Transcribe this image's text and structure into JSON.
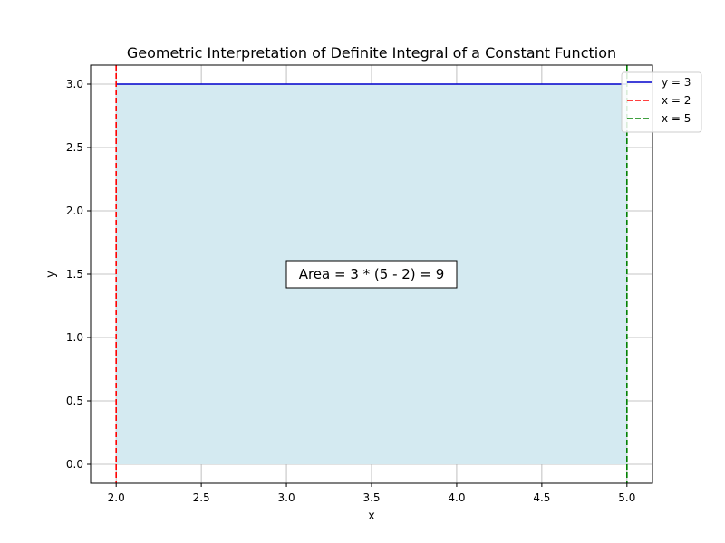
{
  "chart_data": {
    "type": "area",
    "title": "Geometric Interpretation of Definite Integral of a Constant Function",
    "xlabel": "x",
    "ylabel": "y",
    "xlim": [
      1.85,
      5.15
    ],
    "ylim": [
      -0.15,
      3.15
    ],
    "xticks": [
      2.0,
      2.5,
      3.0,
      3.5,
      4.0,
      4.5,
      5.0
    ],
    "xtick_labels": [
      "2.0",
      "2.5",
      "3.0",
      "3.5",
      "4.0",
      "4.5",
      "5.0"
    ],
    "yticks": [
      0.0,
      0.5,
      1.0,
      1.5,
      2.0,
      2.5,
      3.0
    ],
    "ytick_labels": [
      "0.0",
      "0.5",
      "1.0",
      "1.5",
      "2.0",
      "2.5",
      "3.0"
    ],
    "grid": true,
    "legend_position": "upper-right (outside axes edge)",
    "fill": {
      "x": [
        2,
        5
      ],
      "y": 3,
      "color": "#d4eaf1"
    },
    "series": [
      {
        "name": "y = 3",
        "kind": "line",
        "x": [
          2,
          5
        ],
        "y": [
          3,
          3
        ],
        "color": "#0000cc",
        "style": "solid"
      },
      {
        "name": "x = 2",
        "kind": "vline",
        "x": 2,
        "color": "#ff0000",
        "style": "dashed"
      },
      {
        "name": "x = 5",
        "kind": "vline",
        "x": 5,
        "color": "#008000",
        "style": "dashed"
      }
    ],
    "annotation": {
      "text": "Area = 3 * (5 - 2) = 9",
      "x": 3.5,
      "y": 1.5
    }
  }
}
